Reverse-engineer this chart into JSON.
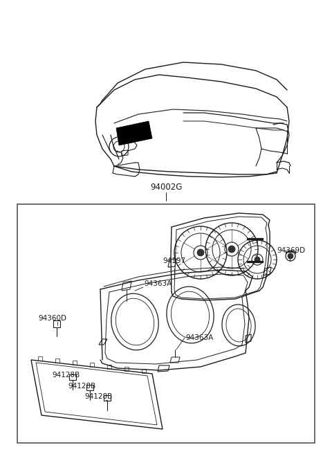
{
  "bg": "#ffffff",
  "line_color": "#1a1a1a",
  "lw": 0.8,
  "figsize": [
    4.8,
    6.56
  ],
  "dpi": 100,
  "label_94002G": "94002G",
  "label_94197": "94197",
  "label_94363A_1": "94363A",
  "label_94363A_2": "94363A",
  "label_94360D": "94360D",
  "label_94369D": "94369D",
  "label_94128B_1": "94128B",
  "label_94128B_2": "94128B",
  "label_94128B_3": "94128B",
  "font_size": 7.5
}
